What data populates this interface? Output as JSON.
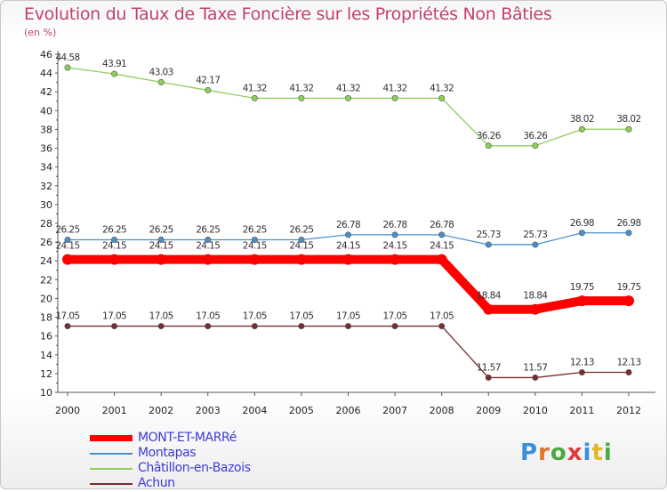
{
  "title": "Evolution du Taux de Taxe Foncière sur les Propriétés Non Bâties",
  "unit": "(en %)",
  "logo": {
    "letters": [
      "P",
      "r",
      "o",
      "x",
      "i",
      "t",
      "i"
    ],
    "colors": [
      "#3a8fd6",
      "#e0752a",
      "#49a942",
      "#e03a3a",
      "#3a8fd6",
      "#e0b82a",
      "#49a942"
    ]
  },
  "chart_data": {
    "type": "line",
    "x": [
      "2000",
      "2001",
      "2002",
      "2003",
      "2004",
      "2005",
      "2006",
      "2007",
      "2008",
      "2009",
      "2010",
      "2011",
      "2012"
    ],
    "ylim": [
      10,
      46
    ],
    "yticks": [
      "10",
      "12",
      "14",
      "16",
      "18",
      "20",
      "22",
      "24",
      "26",
      "28",
      "30",
      "32",
      "34",
      "36",
      "38",
      "40",
      "42",
      "44",
      "46"
    ],
    "grid": false,
    "series": [
      {
        "name": "MONT-ET-MARRé",
        "color": "#ff0000",
        "values": [
          24.15,
          24.15,
          24.15,
          24.15,
          24.15,
          24.15,
          24.15,
          24.15,
          24.15,
          18.84,
          18.84,
          19.75,
          19.75
        ],
        "labels": [
          "24.15",
          "24.15",
          "24.15",
          "24.15",
          "24.15",
          "24.15",
          "24.15",
          "24.15",
          "24.15",
          "18.84",
          "18.84",
          "19.75",
          "19.75"
        ]
      },
      {
        "name": "Montapas",
        "color": "#4a90c8",
        "values": [
          26.25,
          26.25,
          26.25,
          26.25,
          26.25,
          26.25,
          26.78,
          26.78,
          26.78,
          25.73,
          25.73,
          26.98,
          26.98
        ],
        "labels": [
          "26.25",
          "26.25",
          "26.25",
          "26.25",
          "26.25",
          "26.25",
          "26.78",
          "26.78",
          "26.78",
          "25.73",
          "25.73",
          "26.98",
          "26.98"
        ]
      },
      {
        "name": "Châtillon-en-Bazois",
        "color": "#8ecf5a",
        "values": [
          44.58,
          43.91,
          43.03,
          42.17,
          41.32,
          41.32,
          41.32,
          41.32,
          41.32,
          36.26,
          36.26,
          38.02,
          38.02
        ],
        "labels": [
          "44.58",
          "43.91",
          "43.03",
          "42.17",
          "41.32",
          "41.32",
          "41.32",
          "41.32",
          "41.32",
          "36.26",
          "36.26",
          "38.02",
          "38.02"
        ]
      },
      {
        "name": "Achun",
        "color": "#7a2d2d",
        "values": [
          17.05,
          17.05,
          17.05,
          17.05,
          17.05,
          17.05,
          17.05,
          17.05,
          17.05,
          11.57,
          11.57,
          12.13,
          12.13
        ],
        "labels": [
          "17.05",
          "17.05",
          "17.05",
          "17.05",
          "17.05",
          "17.05",
          "17.05",
          "17.05",
          "17.05",
          "11.57",
          "11.57",
          "12.13",
          "12.13"
        ]
      }
    ]
  }
}
